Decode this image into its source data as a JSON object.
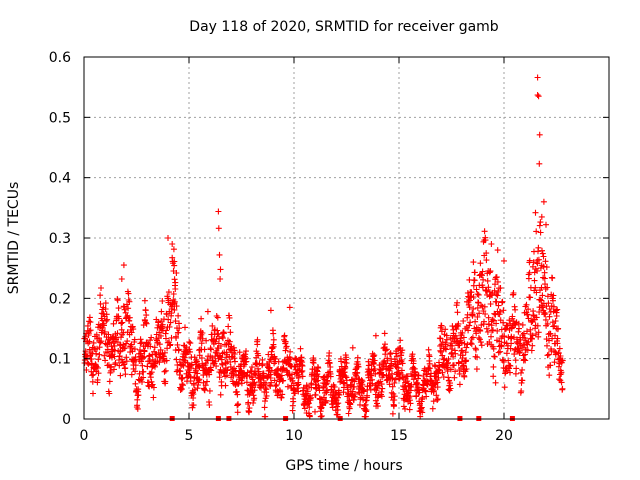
{
  "chart_data": {
    "type": "scatter",
    "title": "Day 118 of 2020, SRMTID for receiver gamb",
    "xlabel": "GPS time / hours",
    "ylabel": "SRMTID / TECUs",
    "xlim": [
      0,
      25
    ],
    "ylim": [
      0,
      0.6
    ],
    "grid": true,
    "marker_color": "#ff0000",
    "x_ticks": [
      {
        "value": 0,
        "label": "0"
      },
      {
        "value": 5,
        "label": "5"
      },
      {
        "value": 10,
        "label": "10"
      },
      {
        "value": 15,
        "label": "15"
      },
      {
        "value": 20,
        "label": "20"
      }
    ],
    "y_ticks": [
      {
        "value": 0,
        "label": "0"
      },
      {
        "value": 0.1,
        "label": "0.1"
      },
      {
        "value": 0.2,
        "label": "0.2"
      },
      {
        "value": 0.3,
        "label": "0.3"
      },
      {
        "value": 0.4,
        "label": "0.4"
      },
      {
        "value": 0.5,
        "label": "0.5"
      },
      {
        "value": 0.6,
        "label": "0.6"
      }
    ],
    "baseline_markers_x": [
      4.2,
      6.4,
      6.9,
      9.6,
      12.2,
      17.9,
      18.8,
      20.4
    ],
    "series_profile": [
      [
        0.0,
        0.1
      ],
      [
        0.5,
        0.12
      ],
      [
        1.0,
        0.14
      ],
      [
        1.5,
        0.11
      ],
      [
        2.0,
        0.16
      ],
      [
        2.5,
        0.08
      ],
      [
        3.0,
        0.11
      ],
      [
        3.5,
        0.1
      ],
      [
        4.0,
        0.17
      ],
      [
        4.3,
        0.18
      ],
      [
        4.6,
        0.1
      ],
      [
        5.0,
        0.08
      ],
      [
        5.5,
        0.09
      ],
      [
        6.0,
        0.1
      ],
      [
        6.5,
        0.12
      ],
      [
        7.0,
        0.09
      ],
      [
        7.5,
        0.07
      ],
      [
        8.0,
        0.07
      ],
      [
        8.5,
        0.07
      ],
      [
        9.0,
        0.08
      ],
      [
        9.5,
        0.08
      ],
      [
        10.0,
        0.08
      ],
      [
        10.5,
        0.05
      ],
      [
        11.0,
        0.05
      ],
      [
        11.5,
        0.05
      ],
      [
        12.0,
        0.05
      ],
      [
        12.5,
        0.06
      ],
      [
        13.0,
        0.05
      ],
      [
        13.5,
        0.05
      ],
      [
        14.0,
        0.07
      ],
      [
        14.5,
        0.08
      ],
      [
        15.0,
        0.08
      ],
      [
        15.5,
        0.06
      ],
      [
        16.0,
        0.05
      ],
      [
        16.5,
        0.06
      ],
      [
        17.0,
        0.09
      ],
      [
        17.5,
        0.11
      ],
      [
        18.0,
        0.12
      ],
      [
        18.5,
        0.17
      ],
      [
        19.0,
        0.21
      ],
      [
        19.5,
        0.17
      ],
      [
        20.0,
        0.14
      ],
      [
        20.5,
        0.13
      ],
      [
        21.0,
        0.12
      ],
      [
        21.5,
        0.24
      ],
      [
        22.0,
        0.2
      ],
      [
        22.5,
        0.13
      ],
      [
        22.8,
        0.08
      ]
    ],
    "outliers": [
      [
        21.6,
        0.566
      ],
      [
        21.6,
        0.537
      ],
      [
        21.65,
        0.535
      ],
      [
        21.7,
        0.471
      ],
      [
        21.68,
        0.423
      ],
      [
        6.4,
        0.344
      ],
      [
        6.42,
        0.316
      ],
      [
        6.45,
        0.272
      ],
      [
        6.5,
        0.248
      ],
      [
        6.48,
        0.232
      ],
      [
        4.0,
        0.3
      ],
      [
        4.2,
        0.29
      ],
      [
        4.3,
        0.261
      ],
      [
        4.4,
        0.242
      ],
      [
        4.35,
        0.226
      ],
      [
        4.3,
        0.192
      ],
      [
        1.9,
        0.255
      ],
      [
        1.8,
        0.232
      ],
      [
        21.9,
        0.36
      ],
      [
        22.0,
        0.322
      ],
      [
        21.5,
        0.342
      ],
      [
        21.8,
        0.335
      ],
      [
        19.4,
        0.29
      ],
      [
        19.7,
        0.28
      ],
      [
        20.0,
        0.262
      ],
      [
        5.9,
        0.178
      ],
      [
        9.8,
        0.185
      ],
      [
        13.9,
        0.138
      ],
      [
        12.8,
        0.118
      ],
      [
        19.6,
        0.06
      ],
      [
        10.6,
        0.01
      ],
      [
        11.0,
        0.012
      ],
      [
        8.9,
        0.18
      ],
      [
        2.9,
        0.196
      ]
    ]
  }
}
